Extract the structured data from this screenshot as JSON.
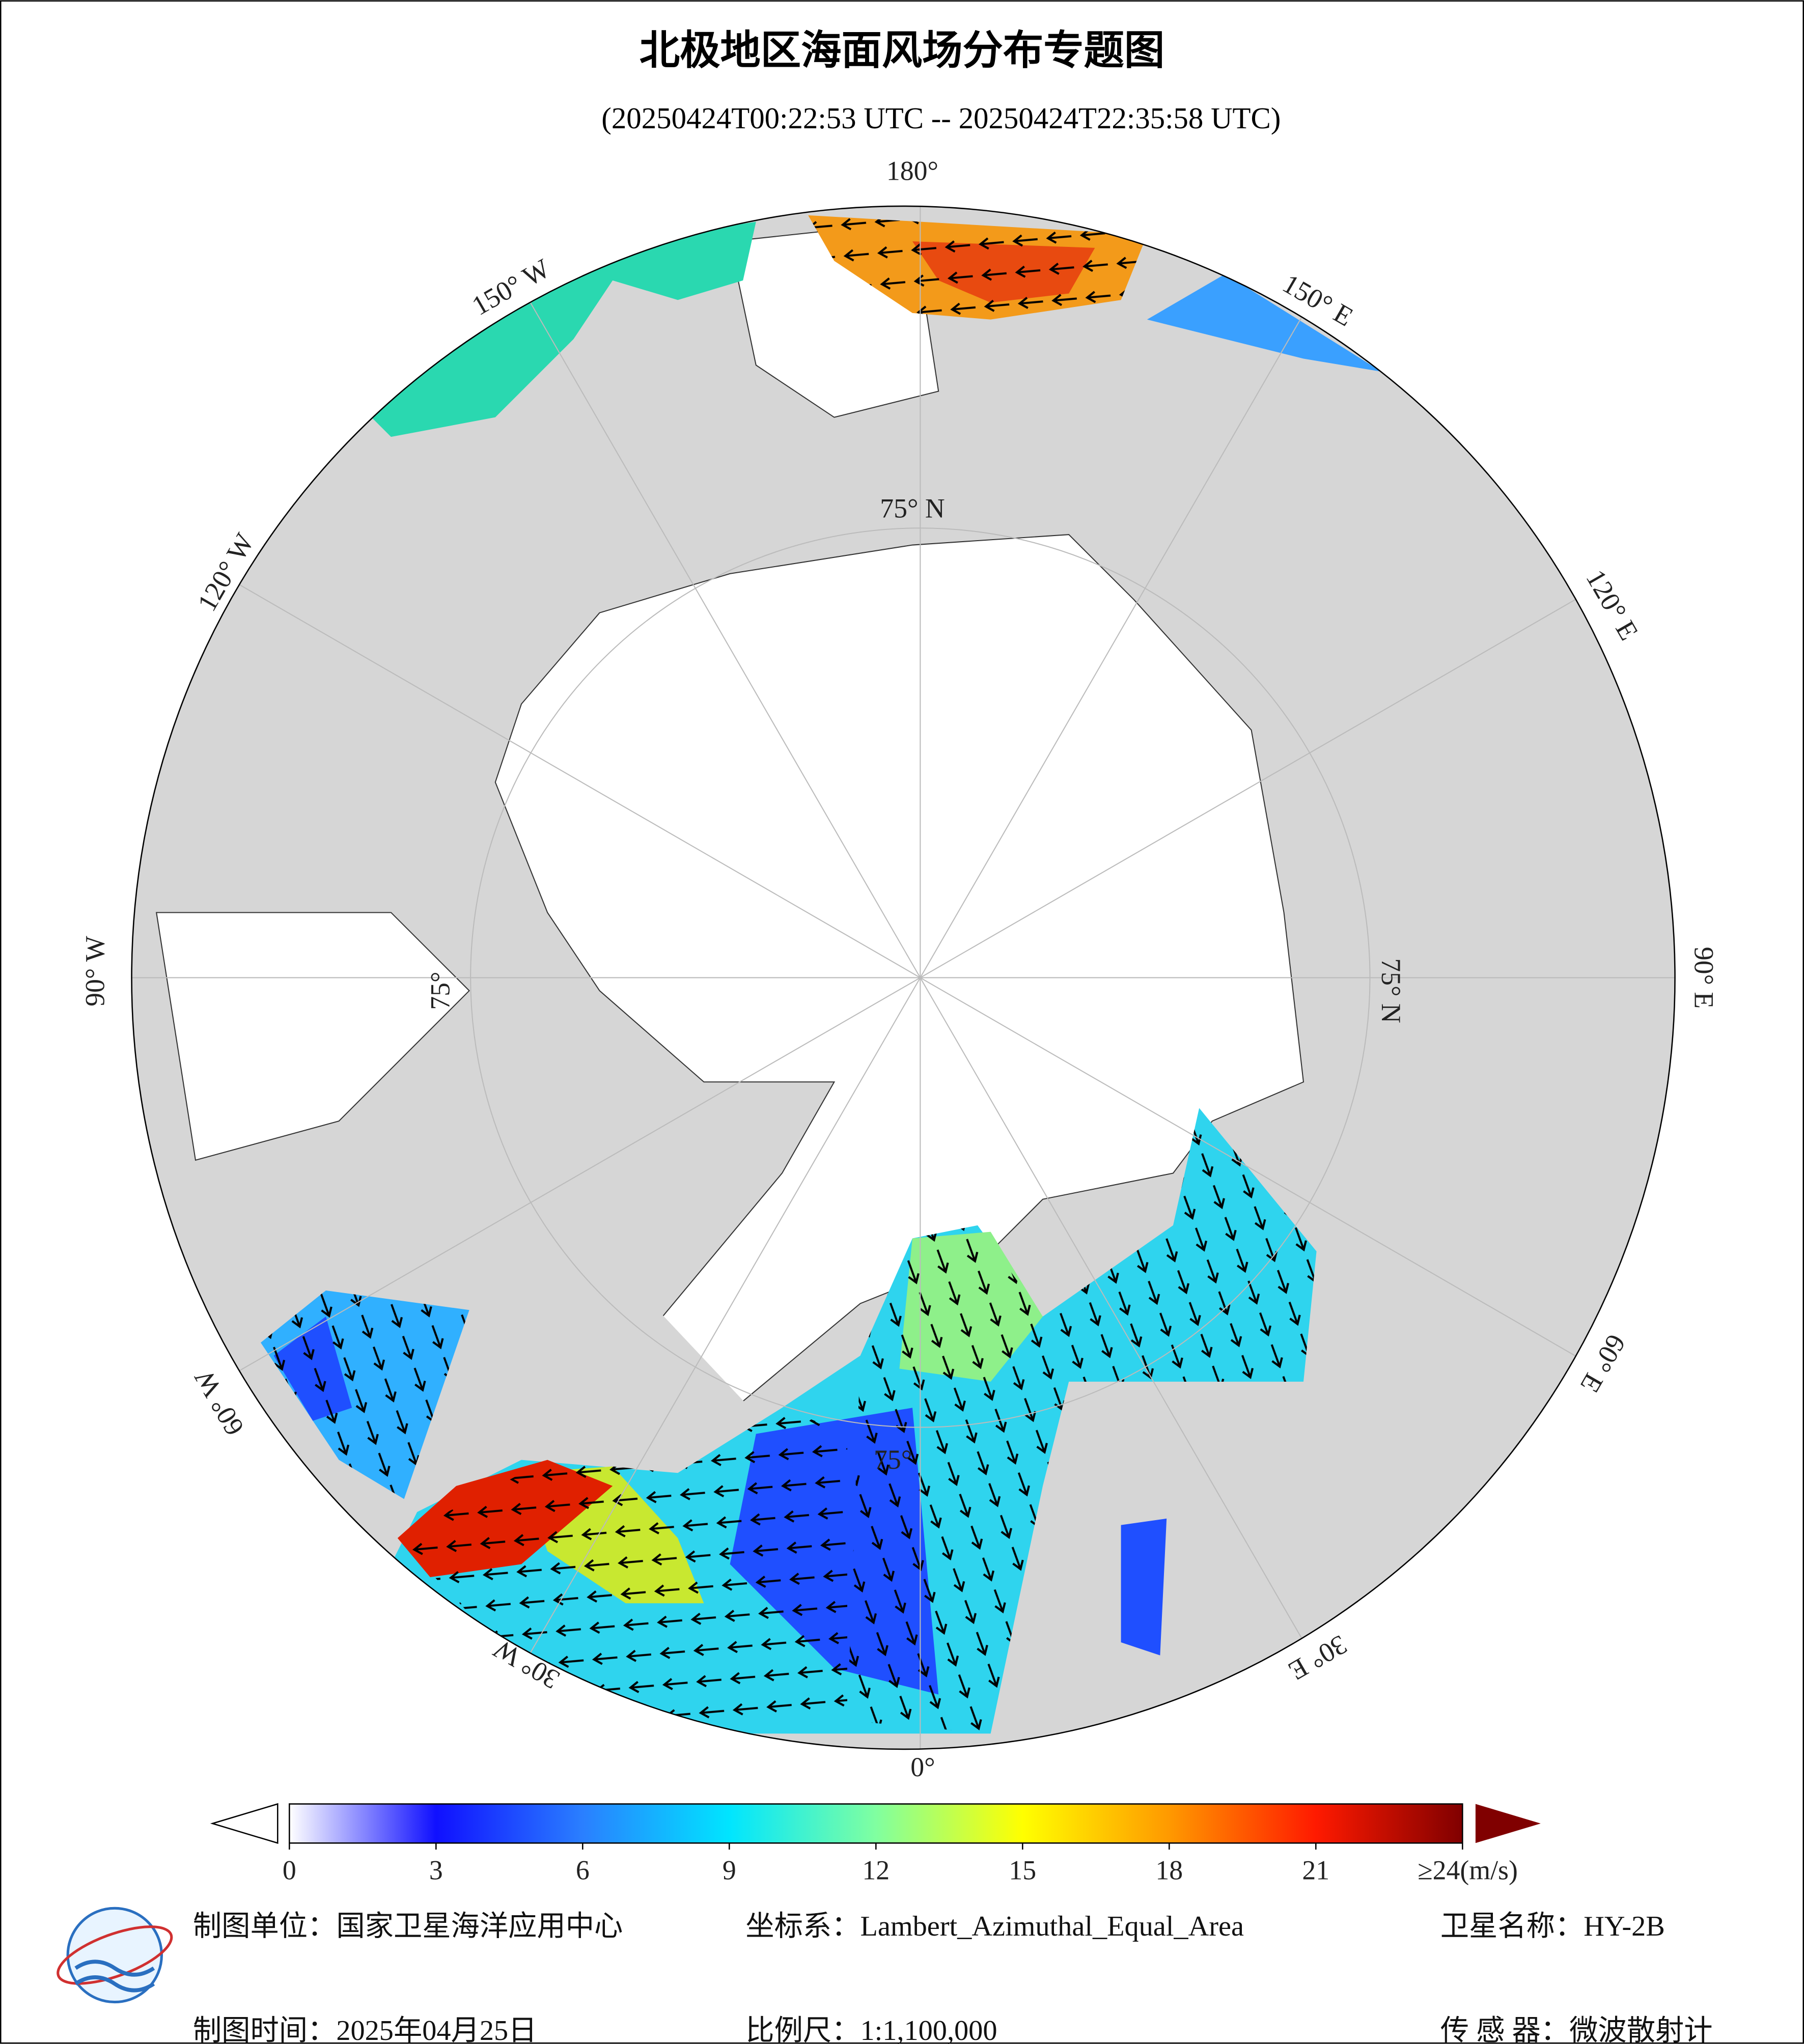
{
  "header": {
    "title": "北极地区海面风场分布专题图",
    "subtitle": "(20250424T00:22:53 UTC -- 20250424T22:35:58 UTC)"
  },
  "map": {
    "longitude_labels": [
      "180°",
      "150° E",
      "120° E",
      "90° E",
      "60° E",
      "30° E",
      "0°",
      "30° W",
      "60° W",
      "90° W",
      "120° W",
      "150° W"
    ],
    "latitude_labels": [
      "75° N",
      "75° N",
      "75°",
      "75°"
    ]
  },
  "colorbar": {
    "ticks": [
      0,
      3,
      6,
      9,
      12,
      15,
      18,
      21,
      {
        "value": 24,
        "label": "≥24(m/s)"
      }
    ],
    "colors": [
      "#ffffff",
      "#1010ff",
      "#2a7fff",
      "#00e5ff",
      "#80ffa0",
      "#ffff00",
      "#ff9900",
      "#ff1a00",
      "#800000"
    ]
  },
  "footer": {
    "agency": "制图单位：国家卫星海洋应用中心",
    "date": "制图时间：2025年04月25日",
    "projection": "坐标系：Lambert_Azimuthal_Equal_Area",
    "scale": "比例尺：1:1,100,000",
    "satellite": "卫星名称：HY-2B",
    "sensor": "传 感 器：微波散射计"
  }
}
